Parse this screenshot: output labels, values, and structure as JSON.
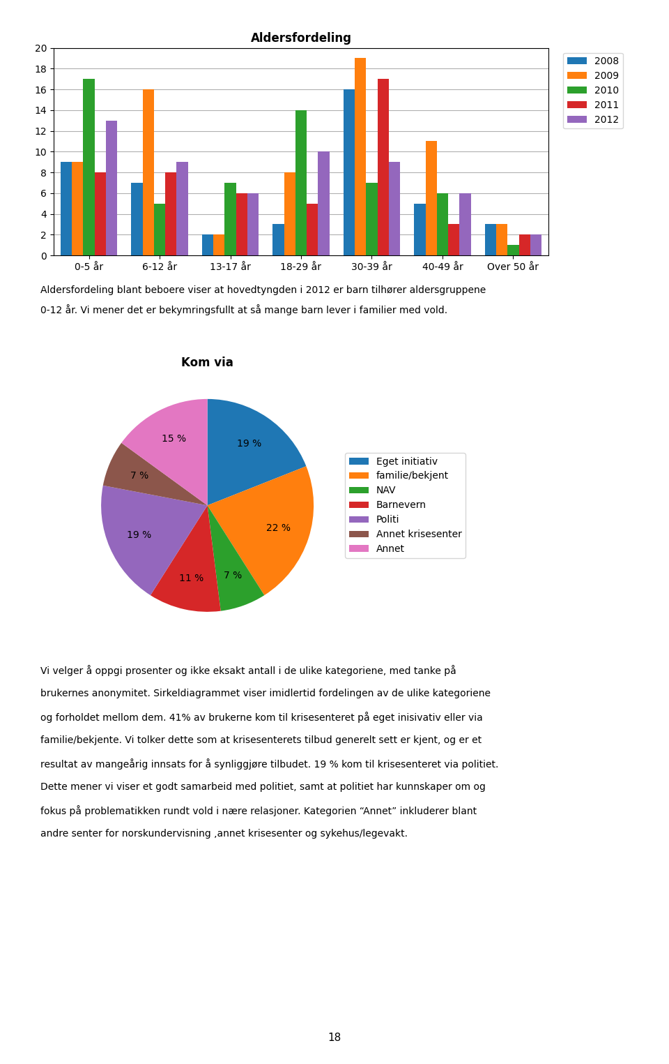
{
  "chart_data": [
    {
      "type": "bar",
      "title": "Aldersfordeling",
      "categories": [
        "0-5 år",
        "6-12 år",
        "13-17 år",
        "18-29 år",
        "30-39 år",
        "40-49 år",
        "Over 50 år"
      ],
      "series": [
        {
          "name": "2008",
          "values": [
            9,
            7,
            2,
            3,
            16,
            5,
            3
          ]
        },
        {
          "name": "2009",
          "values": [
            9,
            16,
            2,
            8,
            19,
            11,
            3
          ]
        },
        {
          "name": "2010",
          "values": [
            17,
            5,
            7,
            14,
            7,
            6,
            1
          ]
        },
        {
          "name": "2011",
          "values": [
            8,
            8,
            6,
            5,
            17,
            3,
            2
          ]
        },
        {
          "name": "2012",
          "values": [
            13,
            9,
            6,
            10,
            9,
            6,
            2
          ]
        }
      ],
      "ylim": [
        0,
        20
      ],
      "yticks": [
        0,
        2,
        4,
        6,
        8,
        10,
        12,
        14,
        16,
        18,
        20
      ],
      "grid": true,
      "legend": "upper left",
      "annotations": [
        "Aldersfordeling blant beboere viser at hovedtyngden i 2012 er barn tilhører aldersgruppene",
        "0-12 år. Vi mener det er bekymringsfullt at så mange barn lever i familier med vold."
      ]
    },
    {
      "type": "pie",
      "title": "Kom via",
      "categories": [
        "Eget initiativ",
        "familie/bekjent",
        "NAV",
        "Barnevern",
        "Politi",
        "Annet krisesenter",
        "Annet"
      ],
      "values": [
        19,
        22,
        7,
        11,
        19,
        7,
        15
      ],
      "value_labels": [
        "19 %",
        "22 %",
        "7 %",
        "11 %",
        "19 %",
        "7 %",
        "15 %"
      ],
      "data_labels": true,
      "legend": "center left",
      "annotations": [
        "Vi velger å oppgi prosenter og ikke eksakt antall i de ulike kategoriene, med tanke på",
        "brukernes anonymitet. Sirkeldiagrammet viser imidlertid fordelingen av de ulike kategoriene",
        "og forholdet mellom dem. 41% av brukerne kom til krisesenteret på eget inisivativ eller via",
        "familie/bekjente. Vi tolker dette som at krisesenterets tilbud generelt sett er kjent, og er et",
        "resultat av mangeårig innsats for å synliggjøre tilbudet. 19 % kom til krisesenteret via politiet.",
        "Dette mener vi viser et godt samarbeid med politiet, samt at politiet har kunnskaper om og",
        "fokus på problematikken rundt vold i nære relasjoner. Kategorien “Annet” inkluderer blant",
        "andre senter for norskundervisning ,annet krisesenter og sykehus/legevakt."
      ]
    }
  ],
  "annotations": [
    "18"
  ]
}
